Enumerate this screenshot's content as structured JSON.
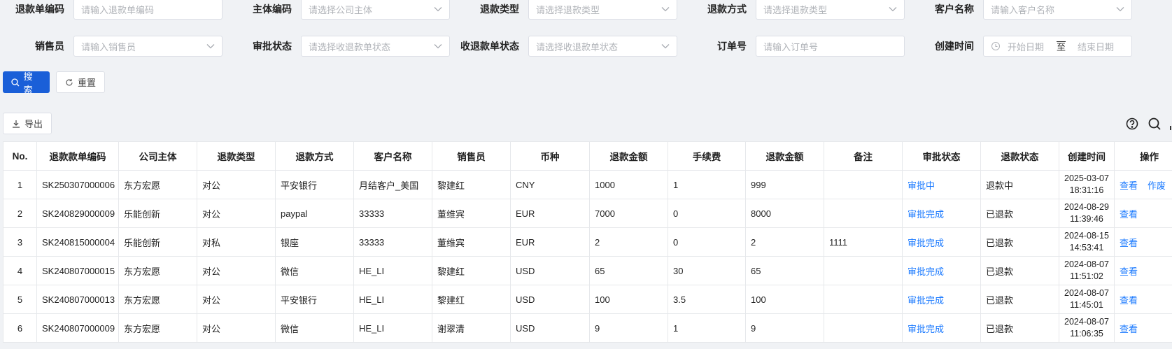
{
  "filters": [
    {
      "label": "退款单编码",
      "placeholder": "请输入退款单编码",
      "dropdown": false
    },
    {
      "label": "主体编码",
      "placeholder": "请选择公司主体",
      "dropdown": true
    },
    {
      "label": "退款类型",
      "placeholder": "请选择退款类型",
      "dropdown": true
    },
    {
      "label": "退款方式",
      "placeholder": "请选择退款类型",
      "dropdown": true
    },
    {
      "label": "客户名称",
      "placeholder": "请输入客户名称",
      "dropdown": true
    },
    {
      "label": "销售员",
      "placeholder": "请输入销售员",
      "dropdown": true
    },
    {
      "label": "审批状态",
      "placeholder": "请选择收退款单状态",
      "dropdown": true
    },
    {
      "label": "收退款单状态",
      "placeholder": "请选择收退款单状态",
      "dropdown": true
    },
    {
      "label": "订单号",
      "placeholder": "请输入订单号",
      "dropdown": false
    },
    {
      "label": "创建时间",
      "start": "开始日期",
      "separator": "至",
      "end": "结束日期"
    }
  ],
  "buttons": {
    "search": "搜索",
    "reset": "重置",
    "export": "导出"
  },
  "table": {
    "columns": [
      "No.",
      "退款款单编码",
      "公司主体",
      "退款类型",
      "退款方式",
      "客户名称",
      "销售员",
      "币种",
      "退款金额",
      "手续费",
      "退款金额",
      "备注",
      "审批状态",
      "退款状态",
      "创建时间",
      "操作"
    ],
    "rows": [
      [
        "1",
        "SK250307000006",
        "东方宏愿",
        "对公",
        "平安银行",
        "月结客户_美国",
        "黎建红",
        "CNY",
        "1000",
        "1",
        "999",
        null,
        "审批中",
        "退款中",
        [
          "2025-03-07",
          "18:31:16"
        ],
        [
          "查看",
          "作废"
        ]
      ],
      [
        "2",
        "SK240829000009",
        "乐能创新",
        "对公",
        "paypal",
        "33333",
        "董维宾",
        "EUR",
        "7000",
        "0",
        "8000",
        null,
        "审批完成",
        "已退款",
        [
          "2024-08-29",
          "11:39:46"
        ],
        [
          "查看"
        ]
      ],
      [
        "3",
        "SK240815000004",
        "乐能创新",
        "对私",
        "银座",
        "33333",
        "董维宾",
        "EUR",
        "2",
        "0",
        "2",
        "1111",
        "审批完成",
        "已退款",
        [
          "2024-08-15",
          "14:53:41"
        ],
        [
          "查看"
        ]
      ],
      [
        "4",
        "SK240807000015",
        "东方宏愿",
        "对公",
        "微信",
        "HE_LI",
        "黎建红",
        "USD",
        "65",
        "30",
        "65",
        null,
        "审批完成",
        "已退款",
        [
          "2024-08-07",
          "11:51:02"
        ],
        [
          "查看"
        ]
      ],
      [
        "5",
        "SK240807000013",
        "东方宏愿",
        "对公",
        "平安银行",
        "HE_LI",
        "黎建红",
        "USD",
        "100",
        "3.5",
        "100",
        null,
        "审批完成",
        "已退款",
        [
          "2024-08-07",
          "11:45:01"
        ],
        [
          "查看"
        ]
      ],
      [
        "6",
        "SK240807000009",
        "东方宏愿",
        "对公",
        "微信",
        "HE_LI",
        "谢翠清",
        "USD",
        "9",
        "1",
        "9",
        null,
        "审批完成",
        "已退款",
        [
          "2024-08-07",
          "11:06:35"
        ],
        [
          "查看"
        ]
      ]
    ]
  }
}
